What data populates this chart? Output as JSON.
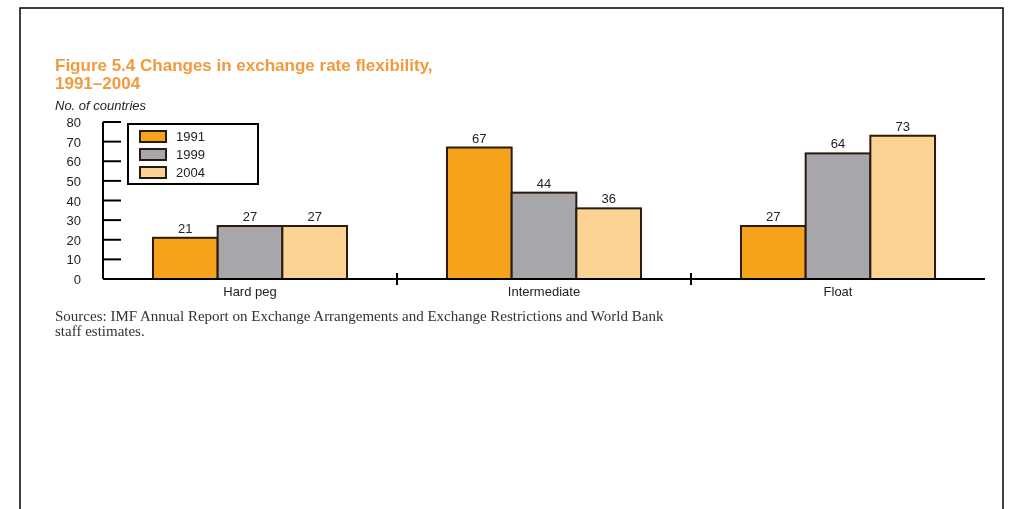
{
  "chart_data": {
    "type": "bar",
    "title": "Figure 5.4  Changes in exchange rate flexibility, 1991–2004",
    "ylabel": "No. of countries",
    "categories": [
      "Hard peg",
      "Intermediate",
      "Float"
    ],
    "series": [
      {
        "name": "1991",
        "color": "#f7a21b",
        "values": [
          21,
          67,
          27
        ]
      },
      {
        "name": "1999",
        "color": "#a7a6ab",
        "values": [
          27,
          44,
          64
        ]
      },
      {
        "name": "2004",
        "color": "#fbd393",
        "values": [
          27,
          36,
          73
        ]
      }
    ],
    "ylim": [
      0,
      80
    ],
    "yticks": [
      0,
      10,
      20,
      30,
      40,
      50,
      60,
      70,
      80
    ],
    "data_labels": true,
    "legend": "top left",
    "grid": false,
    "annotations": [
      "Sources: IMF Annual Report on Exchange Arrangements and Exchange Restrictions and World Bank staff estimates."
    ]
  }
}
